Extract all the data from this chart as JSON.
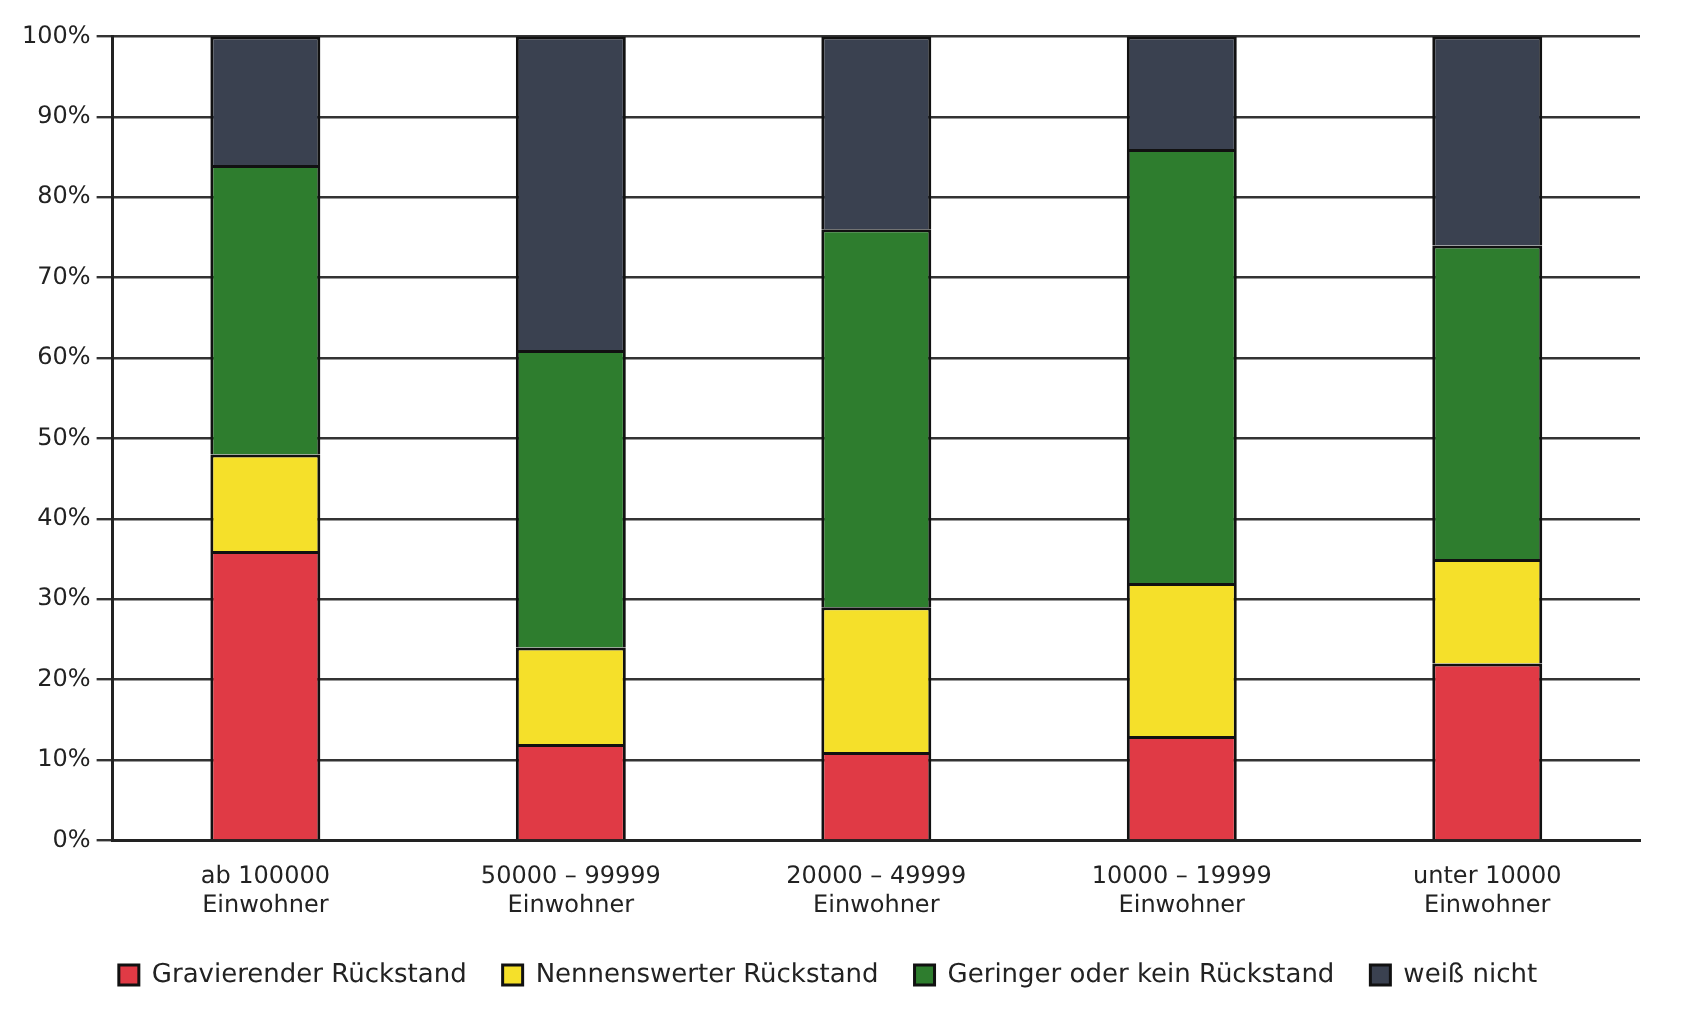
{
  "chart_data": {
    "type": "bar",
    "stacked": true,
    "categories": [
      "ab 100000 Einwohner",
      "50000 – 99999 Einwohner",
      "20000 – 49999 Einwohner",
      "10000 – 19999 Einwohner",
      "unter 10000 Einwohner"
    ],
    "series": [
      {
        "name": "Gravierender Rückstand",
        "color": "#e03a45",
        "values": [
          36,
          12,
          11,
          13,
          22
        ]
      },
      {
        "name": "Nennenswerter Rückstand",
        "color": "#f5e02a",
        "values": [
          12,
          12,
          18,
          19,
          13
        ]
      },
      {
        "name": "Geringer oder kein Rückstand",
        "color": "#2e7d2e",
        "values": [
          36,
          37,
          47,
          54,
          39
        ]
      },
      {
        "name": "weiß nicht",
        "color": "#3a4150",
        "values": [
          16,
          39,
          24,
          14,
          26
        ]
      }
    ],
    "ylim": [
      0,
      100
    ],
    "yticks": [
      {
        "value": 0,
        "label": "0%"
      },
      {
        "value": 10,
        "label": "10%"
      },
      {
        "value": 20,
        "label": "20%"
      },
      {
        "value": 30,
        "label": "30%"
      },
      {
        "value": 40,
        "label": "40%"
      },
      {
        "value": 50,
        "label": "50%"
      },
      {
        "value": 60,
        "label": "60%"
      },
      {
        "value": 70,
        "label": "70%"
      },
      {
        "value": 80,
        "label": "80%"
      },
      {
        "value": 90,
        "label": "90%"
      },
      {
        "value": 100,
        "label": "100%"
      }
    ],
    "grid": "y",
    "legend": "bottom"
  }
}
